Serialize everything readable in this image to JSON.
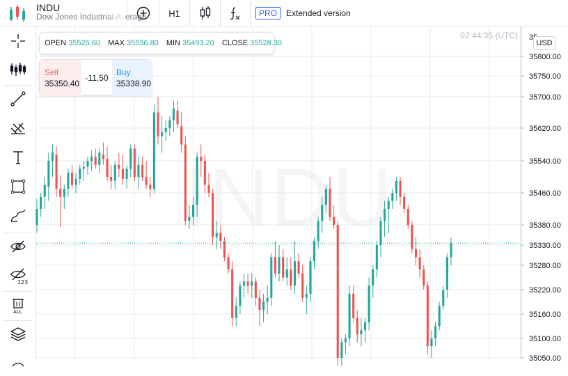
{
  "header": {
    "symbol": "INDU",
    "description": "Dow Jones Industrial Average",
    "timeframe": "H1",
    "pro_badge": "PRO",
    "extended_label": "Extended version"
  },
  "icons": {
    "top": [
      "app-logo-icon",
      "add-indicator-icon",
      "candle-type-icon",
      "function-icon"
    ],
    "sidebar": [
      "crosshair-icon",
      "indicators-icon",
      "trend-line-icon",
      "pitchfork-icon",
      "text-icon",
      "rectangle-icon",
      "brush-icon",
      "hide-drawings-icon",
      "hide-numbers-icon",
      "delete-all-icon",
      "layers-icon"
    ]
  },
  "ohlc": {
    "open_label": "OPEN",
    "open": "35525.60",
    "max_label": "MAX",
    "max": "35536.80",
    "min_label": "MIN",
    "min": "35493.20",
    "close_label": "CLOSE",
    "close": "35528.30"
  },
  "trade": {
    "sell_label": "Sell",
    "sell_price": "35350.40",
    "spread": "-11.50",
    "buy_label": "Buy",
    "buy_price": "35338.90"
  },
  "time": "02:44:35 (UTC)",
  "currency": "USD",
  "watermark": "INDU",
  "colors": {
    "up": "#26a69a",
    "down": "#ef5350",
    "grid": "#e6e9ef",
    "last_price": "#26a69a"
  },
  "chart_data": {
    "type": "candlestick",
    "y_ticks": [
      "35800.00",
      "35750.00",
      "35700.00",
      "35620.00",
      "35540.00",
      "35460.00",
      "35380.00",
      "35330.00",
      "35280.00",
      "35220.00",
      "35160.00",
      "35100.00",
      "35050.00"
    ],
    "y_tick_values": [
      35800,
      35750,
      35700,
      35620,
      35540,
      35460,
      35380,
      35330,
      35280,
      35220,
      35160,
      35100,
      35050
    ],
    "partial_top_label": "35",
    "last_price": 35335,
    "candles": [
      [
        35380,
        35445,
        35360,
        35420
      ],
      [
        35420,
        35460,
        35400,
        35450
      ],
      [
        35450,
        35500,
        35420,
        35480
      ],
      [
        35475,
        35560,
        35440,
        35540
      ],
      [
        35540,
        35580,
        35500,
        35560
      ],
      [
        35555,
        35575,
        35450,
        35470
      ],
      [
        35470,
        35505,
        35375,
        35450
      ],
      [
        35450,
        35480,
        35420,
        35470
      ],
      [
        35470,
        35520,
        35450,
        35510
      ],
      [
        35510,
        35530,
        35470,
        35480
      ],
      [
        35480,
        35510,
        35460,
        35495
      ],
      [
        35495,
        35530,
        35480,
        35520
      ],
      [
        35520,
        35540,
        35490,
        35525
      ],
      [
        35525,
        35550,
        35505,
        35540
      ],
      [
        35540,
        35565,
        35515,
        35550
      ],
      [
        35550,
        35570,
        35520,
        35530
      ],
      [
        35530,
        35570,
        35510,
        35560
      ],
      [
        35555,
        35585,
        35530,
        35545
      ],
      [
        35545,
        35575,
        35490,
        35500
      ],
      [
        35500,
        35530,
        35470,
        35490
      ],
      [
        35490,
        35540,
        35470,
        35530
      ],
      [
        35530,
        35560,
        35500,
        35520
      ],
      [
        35520,
        35555,
        35480,
        35495
      ],
      [
        35495,
        35530,
        35470,
        35520
      ],
      [
        35520,
        35580,
        35500,
        35570
      ],
      [
        35570,
        35580,
        35490,
        35500
      ],
      [
        35500,
        35550,
        35470,
        35530
      ],
      [
        35530,
        35550,
        35490,
        35500
      ],
      [
        35500,
        35540,
        35470,
        35480
      ],
      [
        35480,
        35500,
        35450,
        35470
      ],
      [
        35470,
        35680,
        35460,
        35660
      ],
      [
        35660,
        35700,
        35580,
        35600
      ],
      [
        35600,
        35650,
        35560,
        35610
      ],
      [
        35610,
        35640,
        35590,
        35620
      ],
      [
        35620,
        35650,
        35600,
        35640
      ],
      [
        35640,
        35690,
        35610,
        35670
      ],
      [
        35665,
        35690,
        35620,
        35630
      ],
      [
        35625,
        35660,
        35560,
        35580
      ],
      [
        35580,
        35600,
        35380,
        35390
      ],
      [
        35390,
        35430,
        35370,
        35400
      ],
      [
        35400,
        35450,
        35380,
        35430
      ],
      [
        35430,
        35560,
        35400,
        35550
      ],
      [
        35550,
        35580,
        35500,
        35540
      ],
      [
        35540,
        35555,
        35460,
        35480
      ],
      [
        35480,
        35510,
        35450,
        35460
      ],
      [
        35460,
        35470,
        35330,
        35350
      ],
      [
        35350,
        35390,
        35320,
        35360
      ],
      [
        35360,
        35380,
        35320,
        35340
      ],
      [
        35340,
        35350,
        35290,
        35300
      ],
      [
        35300,
        35310,
        35260,
        35270
      ],
      [
        35270,
        35290,
        35130,
        35150
      ],
      [
        35150,
        35200,
        35130,
        35180
      ],
      [
        35180,
        35240,
        35160,
        35230
      ],
      [
        35230,
        35260,
        35200,
        35240
      ],
      [
        35240,
        35260,
        35210,
        35230
      ],
      [
        35230,
        35260,
        35200,
        35240
      ],
      [
        35240,
        35250,
        35180,
        35200
      ],
      [
        35200,
        35220,
        35130,
        35170
      ],
      [
        35170,
        35210,
        35140,
        35190
      ],
      [
        35190,
        35230,
        35160,
        35200
      ],
      [
        35200,
        35310,
        35180,
        35300
      ],
      [
        35300,
        35340,
        35250,
        35260
      ],
      [
        35260,
        35330,
        35240,
        35300
      ],
      [
        35300,
        35320,
        35240,
        35250
      ],
      [
        35250,
        35300,
        35230,
        35270
      ],
      [
        35270,
        35300,
        35220,
        35230
      ],
      [
        35230,
        35340,
        35210,
        35290
      ],
      [
        35290,
        35310,
        35250,
        35260
      ],
      [
        35260,
        35280,
        35190,
        35200
      ],
      [
        35200,
        35230,
        35160,
        35210
      ],
      [
        35210,
        35300,
        35190,
        35290
      ],
      [
        35290,
        35350,
        35270,
        35340
      ],
      [
        35340,
        35400,
        35320,
        35390
      ],
      [
        35390,
        35450,
        35360,
        35430
      ],
      [
        35430,
        35480,
        35410,
        35470
      ],
      [
        35470,
        35500,
        35390,
        35400
      ],
      [
        35400,
        35430,
        35370,
        35380
      ],
      [
        35380,
        35390,
        35030,
        35050
      ],
      [
        35050,
        35100,
        35030,
        35090
      ],
      [
        35090,
        35110,
        35060,
        35100
      ],
      [
        35100,
        35230,
        35080,
        35210
      ],
      [
        35210,
        35230,
        35140,
        35150
      ],
      [
        35150,
        35170,
        35090,
        35110
      ],
      [
        35110,
        35150,
        35080,
        35120
      ],
      [
        35120,
        35150,
        35090,
        35140
      ],
      [
        35140,
        35250,
        35120,
        35230
      ],
      [
        35230,
        35280,
        35200,
        35270
      ],
      [
        35270,
        35340,
        35250,
        35330
      ],
      [
        35330,
        35400,
        35300,
        35390
      ],
      [
        35390,
        35440,
        35350,
        35420
      ],
      [
        35420,
        35450,
        35360,
        35440
      ],
      [
        35440,
        35470,
        35420,
        35460
      ],
      [
        35460,
        35500,
        35440,
        35490
      ],
      [
        35490,
        35500,
        35430,
        35450
      ],
      [
        35450,
        35460,
        35410,
        35420
      ],
      [
        35420,
        35430,
        35370,
        35380
      ],
      [
        35380,
        35390,
        35310,
        35320
      ],
      [
        35320,
        35350,
        35280,
        35300
      ],
      [
        35300,
        35320,
        35250,
        35270
      ],
      [
        35270,
        35280,
        35220,
        35230
      ],
      [
        35230,
        35240,
        35060,
        35080
      ],
      [
        35080,
        35120,
        35050,
        35100
      ],
      [
        35100,
        35140,
        35080,
        35130
      ],
      [
        35130,
        35190,
        35120,
        35180
      ],
      [
        35180,
        35230,
        35170,
        35220
      ],
      [
        35220,
        35310,
        35200,
        35300
      ],
      [
        35300,
        35350,
        35280,
        35335
      ]
    ]
  }
}
